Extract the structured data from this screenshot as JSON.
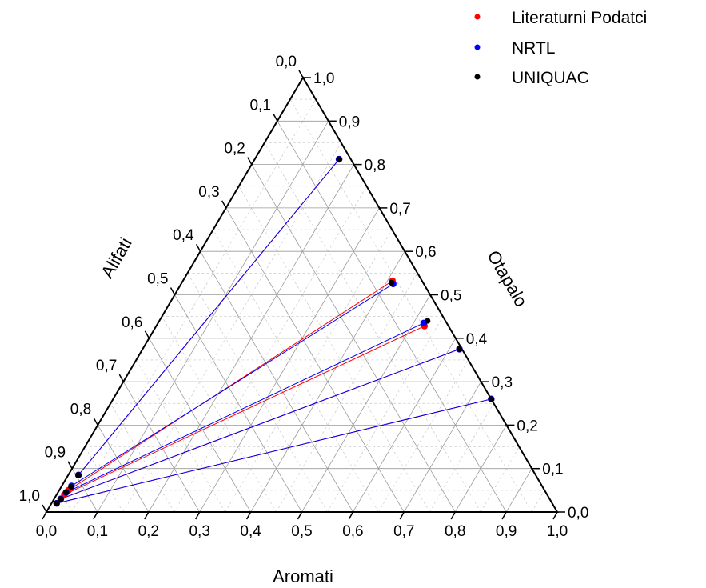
{
  "chart_data": {
    "type": "ternary",
    "axes": {
      "bottom": {
        "label": "Aromati",
        "ticks": [
          "0,0",
          "0,1",
          "0,2",
          "0,3",
          "0,4",
          "0,5",
          "0,6",
          "0,7",
          "0,8",
          "0,9",
          "1,0"
        ]
      },
      "right": {
        "label": "Otapalo",
        "ticks": [
          "0,0",
          "0,1",
          "0,2",
          "0,3",
          "0,4",
          "0,5",
          "0,6",
          "0,7",
          "0,8",
          "0,9",
          "1,0"
        ]
      },
      "left": {
        "label": "Alifati",
        "ticks": [
          "0,0",
          "0,1",
          "0,2",
          "0,3",
          "0,4",
          "0,5",
          "0,6",
          "0,7",
          "0,8",
          "0,9",
          "1,0"
        ]
      },
      "range": [
        0,
        1
      ]
    },
    "grid": true,
    "legend": {
      "placement": "top-right"
    },
    "series": [
      {
        "name": "Literaturni Podatci",
        "color": "#ff0000",
        "tie_lines": [
          {
            "raffinate": {
              "aromati": 0.02,
              "otapalo": 0.085
            },
            "extract": {
              "aromati": 0.165,
              "otapalo": 0.812
            }
          },
          {
            "raffinate": {
              "aromati": 0.018,
              "otapalo": 0.05
            },
            "extract": {
              "aromati": 0.41,
              "otapalo": 0.532
            }
          },
          {
            "raffinate": {
              "aromati": 0.015,
              "otapalo": 0.04
            },
            "extract": {
              "aromati": 0.525,
              "otapalo": 0.428
            }
          },
          {
            "raffinate": {
              "aromati": 0.013,
              "otapalo": 0.03
            },
            "extract": {
              "aromati": 0.62,
              "otapalo": 0.375
            }
          },
          {
            "raffinate": {
              "aromati": 0.01,
              "otapalo": 0.02
            },
            "extract": {
              "aromati": 0.74,
              "otapalo": 0.26
            }
          }
        ]
      },
      {
        "name": "NRTL",
        "color": "#0000ff",
        "tie_lines": [
          {
            "raffinate": {
              "aromati": 0.02,
              "otapalo": 0.085
            },
            "extract": {
              "aromati": 0.165,
              "otapalo": 0.812
            }
          },
          {
            "raffinate": {
              "aromati": 0.019,
              "otapalo": 0.06
            },
            "extract": {
              "aromati": 0.415,
              "otapalo": 0.525
            }
          },
          {
            "raffinate": {
              "aromati": 0.016,
              "otapalo": 0.045
            },
            "extract": {
              "aromati": 0.52,
              "otapalo": 0.435
            }
          },
          {
            "raffinate": {
              "aromati": 0.013,
              "otapalo": 0.03
            },
            "extract": {
              "aromati": 0.62,
              "otapalo": 0.375
            }
          },
          {
            "raffinate": {
              "aromati": 0.01,
              "otapalo": 0.02
            },
            "extract": {
              "aromati": 0.74,
              "otapalo": 0.26
            }
          }
        ]
      },
      {
        "name": "UNIQUAC",
        "color": "#000000",
        "points": [
          {
            "aromati": 0.02,
            "otapalo": 0.085
          },
          {
            "aromati": 0.019,
            "otapalo": 0.058
          },
          {
            "aromati": 0.016,
            "otapalo": 0.045
          },
          {
            "aromati": 0.013,
            "otapalo": 0.03
          },
          {
            "aromati": 0.01,
            "otapalo": 0.02
          },
          {
            "aromati": 0.165,
            "otapalo": 0.812
          },
          {
            "aromati": 0.41,
            "otapalo": 0.528
          },
          {
            "aromati": 0.525,
            "otapalo": 0.44
          },
          {
            "aromati": 0.62,
            "otapalo": 0.375
          },
          {
            "aromati": 0.74,
            "otapalo": 0.26
          }
        ]
      }
    ]
  }
}
